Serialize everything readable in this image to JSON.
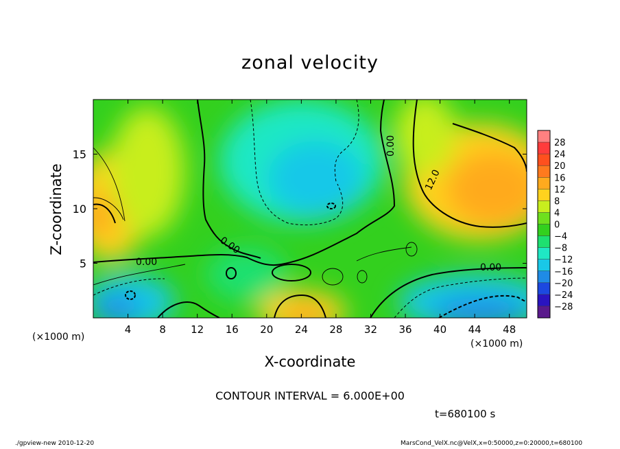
{
  "header": {
    "title": "zonal velocity"
  },
  "axes": {
    "xlabel": "X-coordinate",
    "ylabel": "Z-coordinate",
    "xunit_left": "(×1000 m)",
    "xunit_right": "(×1000 m)"
  },
  "notes": {
    "contour_interval": "CONTOUR INTERVAL = 6.000E+00",
    "time": "t=680100 s"
  },
  "footer": {
    "left": "./gpview-new   2010-12-20",
    "right": "MarsCond_VelX.nc@VelX,x=0:50000,z=0:20000,t=680100"
  },
  "colors": {
    "palette": [
      "#5a1a8c",
      "#2a14c0",
      "#1c48e0",
      "#1f8be6",
      "#19c8e8",
      "#1fe8c4",
      "#1ee070",
      "#33d01e",
      "#6ee01e",
      "#c8ee1e",
      "#ffd21e",
      "#ffaa1e",
      "#ff7a1e",
      "#ff501e",
      "#ff3c3c",
      "#ff8080"
    ]
  },
  "chart_data": {
    "type": "heatmap",
    "title": "zonal velocity",
    "xlabel": "X-coordinate",
    "ylabel": "Z-coordinate",
    "x_unit": "(×1000 m)",
    "xlim": [
      0,
      50
    ],
    "ylim": [
      0,
      20
    ],
    "x_ticks": [
      4,
      8,
      12,
      16,
      20,
      24,
      28,
      32,
      36,
      40,
      44,
      48
    ],
    "y_ticks": [
      5,
      10,
      15
    ],
    "colorbar": {
      "levels": [
        -32,
        -28,
        -24,
        -20,
        -16,
        -12,
        -8,
        -4,
        0,
        4,
        8,
        12,
        16,
        20,
        24,
        28,
        32
      ],
      "labels": [
        "28",
        "24",
        "20",
        "16",
        "12",
        "8",
        "4",
        "0",
        "−4",
        "−8",
        "−12",
        "−16",
        "−20",
        "−24",
        "−28"
      ]
    },
    "contour_labels": [
      "0.00",
      "0.00",
      "0.00",
      "12.0",
      "0.00"
    ],
    "contour_interval": 6.0
  }
}
